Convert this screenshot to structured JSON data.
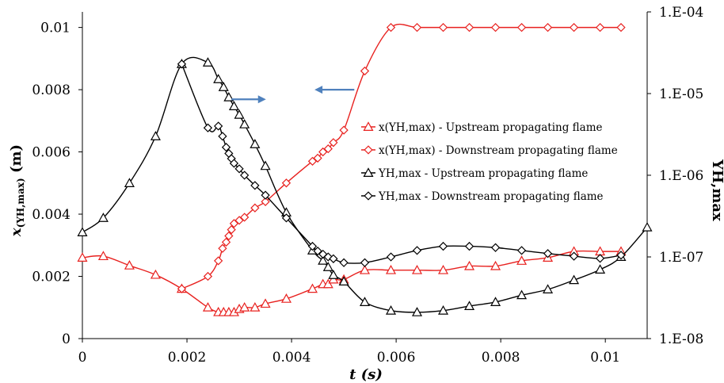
{
  "chart_data": {
    "type": "line",
    "xlabel": "t (s)",
    "ylabel_left": {
      "main": "x",
      "sub": "(YH,max)",
      "unit": " (m)"
    },
    "ylabel_right": "YH,max",
    "xlim": [
      0,
      0.0108
    ],
    "ylim_left": [
      0,
      0.0105
    ],
    "ylim_right_log": [
      1e-08,
      0.0001
    ],
    "x_ticks": [
      0,
      0.002,
      0.004,
      0.006,
      0.008,
      0.01
    ],
    "x_tick_labels": [
      "0",
      "0.002",
      "0.004",
      "0.006",
      "0.008",
      "0.01"
    ],
    "y_left_ticks": [
      0,
      0.002,
      0.004,
      0.006,
      0.008,
      0.01
    ],
    "y_left_tick_labels": [
      "0",
      "0.002",
      "0.004",
      "0.006",
      "0.008",
      "0.01"
    ],
    "y_right_ticks": [
      1e-08,
      1e-07,
      1e-06,
      1e-05,
      0.0001
    ],
    "y_right_tick_labels": [
      "1.E-08",
      "1.E-07",
      "1.E-06",
      "1.E-05",
      "1.E-04"
    ],
    "grid": false,
    "legend_position": "center-right",
    "series": [
      {
        "name": "x(YH,max) - Upstream propagating flame",
        "axis": "left",
        "color": "#e8211f",
        "marker": "triangle",
        "x": [
          0,
          0.0004,
          0.0009,
          0.0014,
          0.0019,
          0.0024,
          0.0026,
          0.0027,
          0.0028,
          0.0029,
          0.003,
          0.0031,
          0.0033,
          0.0035,
          0.0039,
          0.0044,
          0.0046,
          0.0047,
          0.0048,
          0.005,
          0.0054,
          0.0059,
          0.0064,
          0.0069,
          0.0074,
          0.0079,
          0.0084,
          0.0089,
          0.0094,
          0.0099,
          0.0103
        ],
        "y": [
          0.0026,
          0.00265,
          0.00235,
          0.00205,
          0.0016,
          0.001,
          0.00085,
          0.00085,
          0.00085,
          0.00085,
          0.00095,
          0.001,
          0.001,
          0.00112,
          0.00128,
          0.0016,
          0.00175,
          0.00175,
          0.0019,
          0.0019,
          0.0022,
          0.0022,
          0.0022,
          0.0022,
          0.00233,
          0.00233,
          0.0025,
          0.0026,
          0.0028,
          0.0028,
          0.0028
        ]
      },
      {
        "name": "x(YH,max) - Downstream propagating flame",
        "axis": "left",
        "color": "#e8211f",
        "marker": "diamond",
        "x": [
          0.0019,
          0.0024,
          0.0026,
          0.00268,
          0.00275,
          0.0028,
          0.00285,
          0.0029,
          0.003,
          0.0031,
          0.0033,
          0.0035,
          0.0039,
          0.0044,
          0.0045,
          0.0046,
          0.0047,
          0.0048,
          0.005,
          0.0054,
          0.0059,
          0.0064,
          0.0069,
          0.0074,
          0.0079,
          0.0084,
          0.0089,
          0.0094,
          0.0099,
          0.0103
        ],
        "y": [
          0.0016,
          0.002,
          0.0025,
          0.0029,
          0.0031,
          0.0033,
          0.0035,
          0.0037,
          0.0038,
          0.0039,
          0.0042,
          0.0044,
          0.005,
          0.0057,
          0.0058,
          0.006,
          0.0061,
          0.0063,
          0.0067,
          0.0086,
          0.01,
          0.01,
          0.01,
          0.01,
          0.01,
          0.01,
          0.01,
          0.01,
          0.01,
          0.01
        ]
      },
      {
        "name": "YH,max - Upstream propagating flame",
        "axis": "right",
        "color": "#000000",
        "marker": "triangle",
        "x": [
          0,
          0.0004,
          0.0009,
          0.0014,
          0.0019,
          0.0024,
          0.0026,
          0.0027,
          0.0028,
          0.0029,
          0.003,
          0.0031,
          0.0033,
          0.0035,
          0.0039,
          0.0044,
          0.0046,
          0.0047,
          0.0048,
          0.005,
          0.0054,
          0.0059,
          0.0064,
          0.0069,
          0.0074,
          0.0079,
          0.0084,
          0.0089,
          0.0094,
          0.0099,
          0.0103,
          0.0108
        ],
        "y": [
          2e-07,
          3e-07,
          8e-07,
          3e-06,
          2.3e-05,
          2.4e-05,
          1.5e-05,
          1.2e-05,
          9e-06,
          7e-06,
          5.5e-06,
          4.2e-06,
          2.4e-06,
          1.3e-06,
          3.5e-07,
          1.2e-07,
          9e-08,
          7.5e-08,
          6e-08,
          5e-08,
          2.8e-08,
          2.2e-08,
          2.1e-08,
          2.2e-08,
          2.5e-08,
          2.8e-08,
          3.4e-08,
          4e-08,
          5.2e-08,
          7e-08,
          1e-07,
          2.3e-07
        ]
      },
      {
        "name": "YH,max - Downstream propagating flame",
        "axis": "right",
        "color": "#000000",
        "marker": "diamond",
        "x": [
          0.0019,
          0.0024,
          0.0026,
          0.00268,
          0.00275,
          0.0028,
          0.00285,
          0.0029,
          0.003,
          0.0031,
          0.0033,
          0.0035,
          0.0039,
          0.0044,
          0.0045,
          0.0046,
          0.0047,
          0.0048,
          0.005,
          0.0054,
          0.0059,
          0.0064,
          0.0069,
          0.0074,
          0.0079,
          0.0084,
          0.0089,
          0.0094,
          0.0099,
          0.0103
        ],
        "y": [
          2.3e-05,
          3.8e-06,
          4e-06,
          3e-06,
          2.2e-06,
          1.85e-06,
          1.6e-06,
          1.4e-06,
          1.2e-06,
          1e-06,
          7.5e-07,
          5.7e-07,
          3e-07,
          1.35e-07,
          1.18e-07,
          1.08e-07,
          1e-07,
          9.5e-08,
          8.5e-08,
          8.5e-08,
          1e-07,
          1.2e-07,
          1.35e-07,
          1.35e-07,
          1.3e-07,
          1.2e-07,
          1.1e-07,
          1.02e-07,
          9.6e-08,
          1.05e-07
        ]
      }
    ],
    "annotations": [
      {
        "type": "arrow",
        "direction": "right",
        "color": "#4f81bd",
        "x0": 0.00285,
        "x1": 0.00345,
        "y_log": 8.5e-06,
        "meaning": "points to right axis"
      },
      {
        "type": "arrow",
        "direction": "left",
        "color": "#4f81bd",
        "x0": 0.0052,
        "x1": 0.0045,
        "y": 0.008,
        "meaning": "points to left axis"
      }
    ]
  }
}
